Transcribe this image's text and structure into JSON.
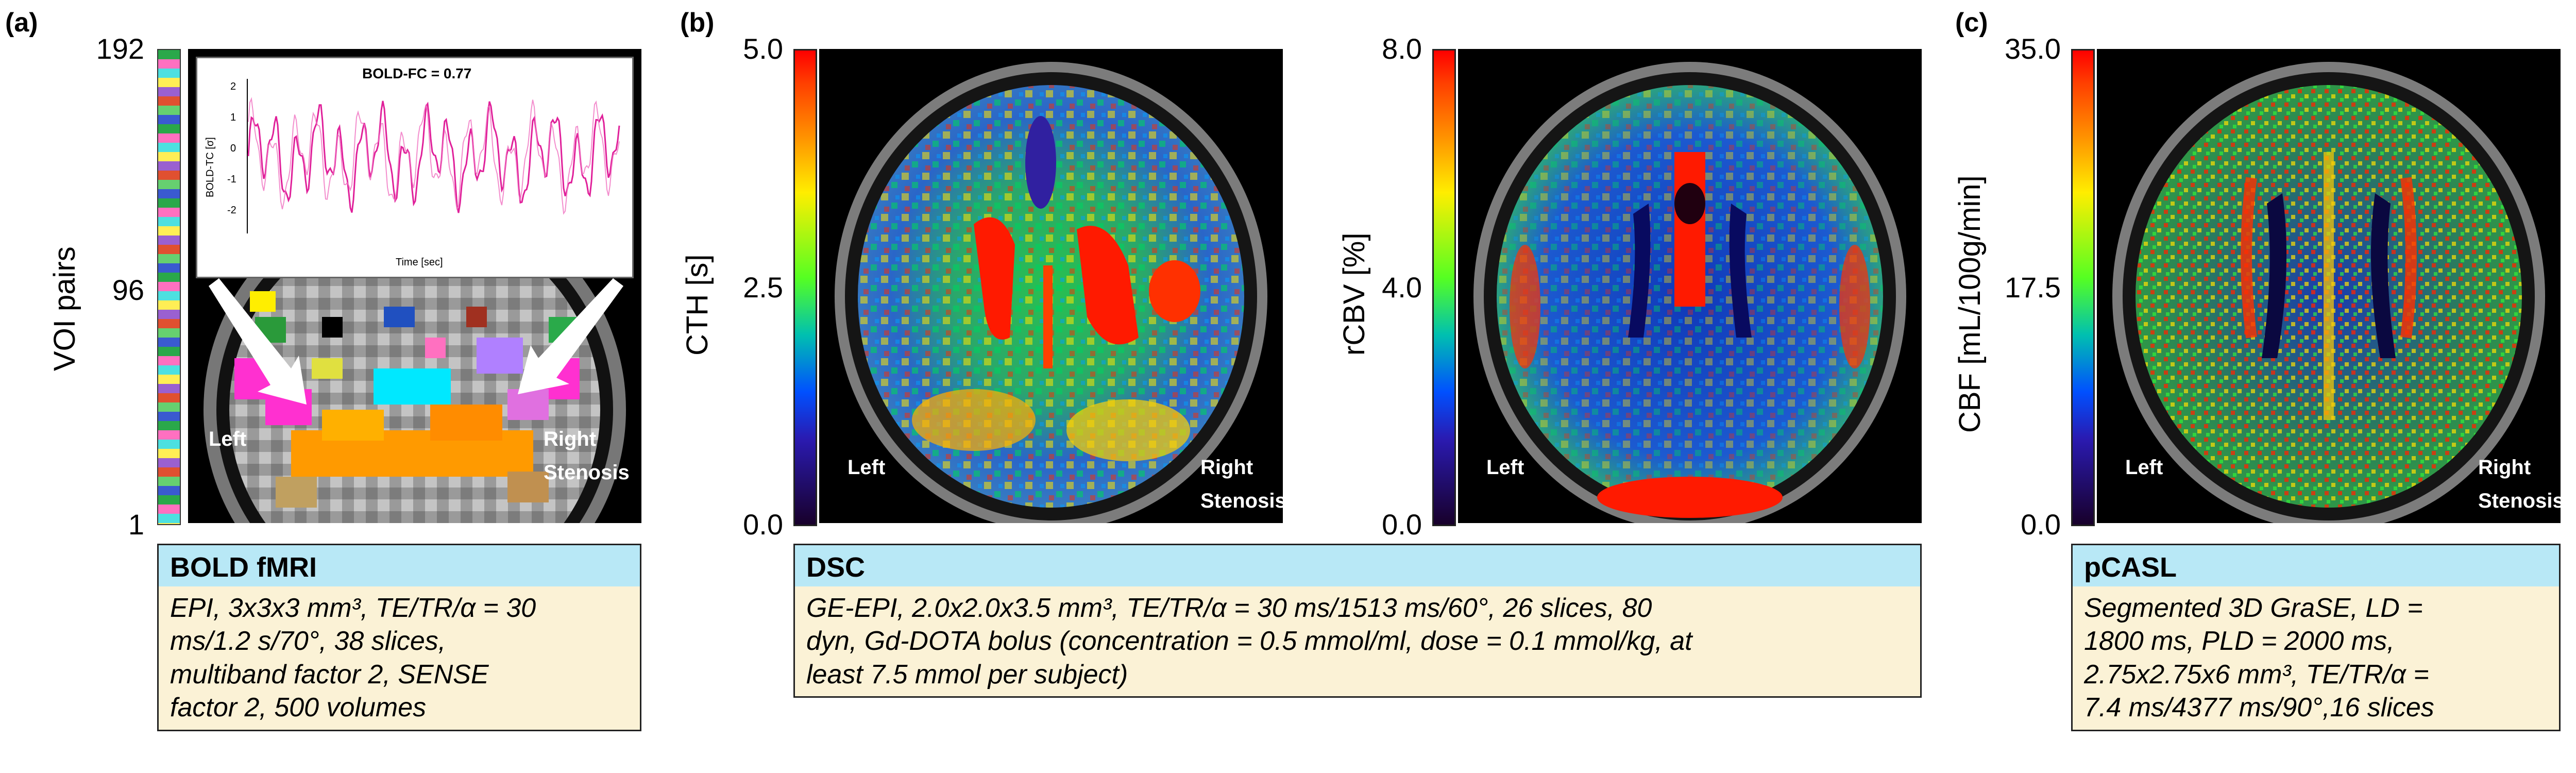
{
  "panels": {
    "a": {
      "letter": "(a)",
      "y_label": "VOI pairs",
      "ticks": {
        "top": "192",
        "mid": "96",
        "bottom": "1"
      },
      "left_label": "Left",
      "right_label": "Right",
      "right_sub_label": "Stenosis",
      "inset": {
        "title": "BOLD-FC = 0.77",
        "y_axis_label": "BOLD-TC [σ]",
        "x_axis_label": "Time [sec]",
        "y_ticks": [
          "2",
          "1",
          "0",
          "-1",
          "-2"
        ],
        "line_color": "#e0209a"
      },
      "box_title": "BOLD fMRI",
      "box_lines": [
        "EPI, 3x3x3 mm³, TE/TR/α = 30",
        "ms/1.2 s/70°, 38 slices,",
        "multiband factor 2, SENSE",
        "factor 2, 500 volumes"
      ]
    },
    "b": {
      "letter": "(b)",
      "cth": {
        "label": "CTH  [s]",
        "ticks": {
          "top": "5.0",
          "mid": "2.5",
          "bottom": "0.0"
        }
      },
      "rcbv": {
        "label": "rCBV  [%]",
        "ticks": {
          "top": "8.0",
          "mid": "4.0",
          "bottom": "0.0"
        }
      },
      "left_label": "Left",
      "right_label": "Right",
      "right_sub_label": "Stenosis",
      "box_title": "DSC",
      "box_lines": [
        "GE-EPI, 2.0x2.0x3.5 mm³, TE/TR/α = 30 ms/1513 ms/60°, 26 slices, 80",
        "dyn, Gd-DOTA bolus (concentration = 0.5 mmol/ml, dose = 0.1 mmol/kg, at",
        "least 7.5 mmol per subject)"
      ]
    },
    "c": {
      "letter": "(c)",
      "label": "CBF  [mL/100g/min]",
      "ticks": {
        "top": "35.0",
        "mid": "17.5",
        "bottom": "0.0"
      },
      "left_label": "Left",
      "right_label": "Right",
      "right_sub_label": "Stenosis",
      "box_title": "pCASL",
      "box_lines": [
        "Segmented 3D GraSE, LD =",
        "1800 ms, PLD = 2000 ms,",
        "2.75x2.75x6 mm³, TE/TR/α =",
        "7.4 ms/4377 ms/90°,16 slices"
      ]
    }
  },
  "colors": {
    "box_header": "#b8e8f6",
    "box_body": "#fbf2d6",
    "colormap": [
      "#ff0000",
      "#ff9000",
      "#ffee00",
      "#55ff22",
      "#00c0b0",
      "#0050ff",
      "#2a1ab0",
      "#18002a"
    ]
  }
}
